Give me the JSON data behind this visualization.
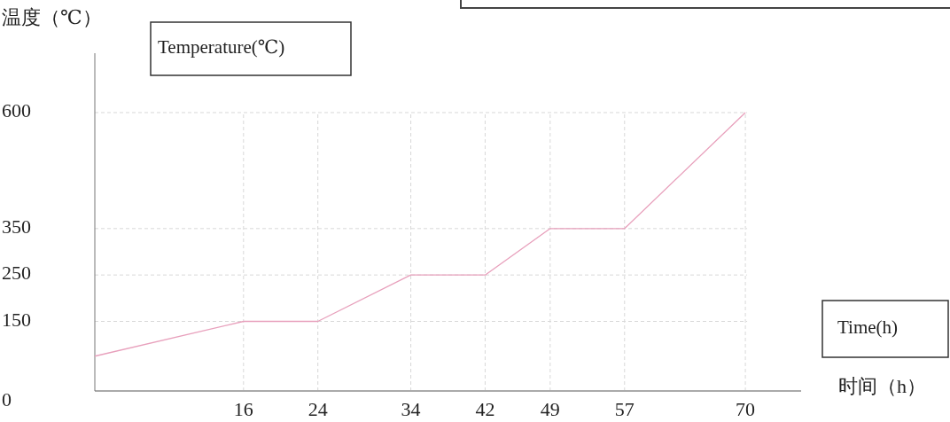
{
  "chart_data": {
    "type": "line",
    "xlabel": "时间（h）",
    "ylabel": "温度（℃）",
    "annotations": [
      "Temperature(℃)",
      "Time(h)"
    ],
    "x": [
      0,
      16,
      24,
      34,
      42,
      49,
      57,
      70
    ],
    "series": [
      {
        "color": "#e8a0bc",
        "values": [
          75,
          150,
          150,
          250,
          250,
          350,
          350,
          600
        ]
      }
    ],
    "xlim": [
      0,
      76
    ],
    "ylim": [
      0,
      728
    ],
    "xticks": [
      16,
      24,
      34,
      42,
      49,
      57,
      70
    ],
    "yticks": [
      0,
      150,
      250,
      350,
      600
    ],
    "grid": true,
    "marker": "none",
    "line_style": "solid"
  }
}
